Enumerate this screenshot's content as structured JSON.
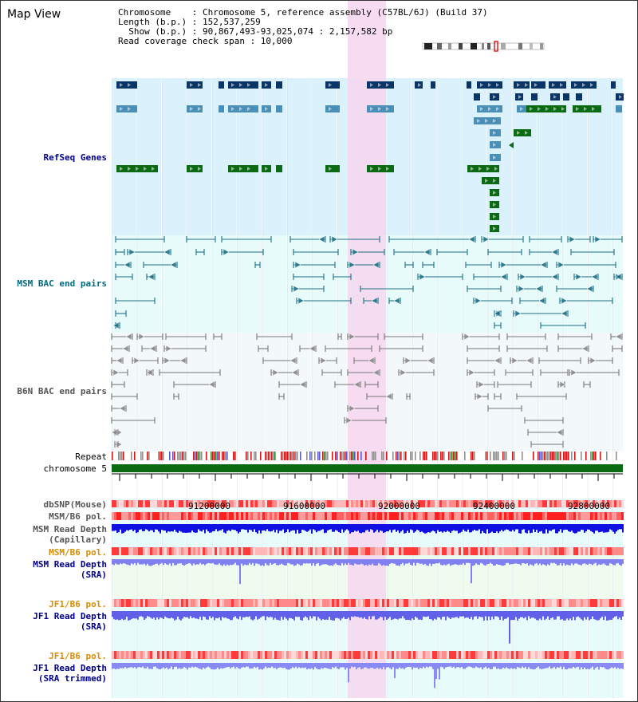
{
  "title": "Map View",
  "info": {
    "chromosome": "Chromosome    : Chromosome 5, reference assembly (C57BL/6J) (Build 37)",
    "length": "Length (b.p.) : 152,537,259",
    "show": "  Show (b.p.) : 90,867,493-93,025,074 : 2,157,582 bp",
    "read_coverage": "Read coverage check span : 10,000"
  },
  "tracks": {
    "refseq": "RefSeq Genes",
    "msm_bac": "MSM BAC end pairs",
    "b6n_bac": "B6N BAC end pairs",
    "repeat": "Repeat",
    "chromosome": "chromosome 5",
    "dbsnp": "dbSNP(Mouse)",
    "msm_b6_pol": "MSM/B6 pol.",
    "msm_read_depth_cap": "MSM Read Depth\n(Capillary)",
    "msm_b6_pol2": "MSM/B6 pol.",
    "msm_read_depth_sra": "MSM Read Depth\n(SRA)",
    "jf1_b6_pol": "JF1/B6 pol.",
    "jf1_read_depth_sra": "JF1 Read Depth\n(SRA)",
    "jf1_b6_pol2": "JF1/B6 pol.",
    "jf1_read_depth_trim": "JF1 Read Depth\n(SRA trimmed)"
  },
  "ruler_labels": [
    "91200000",
    "91600000",
    "92000000",
    "92400000",
    "92800000"
  ],
  "colors": {
    "refseq_bg": "#dbf1fb",
    "bac_bg": "#e8fbfb",
    "b6n_bg": "#f3f8fb",
    "highlight": "#f6d6ee",
    "gene_dark": "#0a3566",
    "gene_mid": "#4a8fb8",
    "gene_green": "#0b6b12",
    "msm_bac_line": "#1c6f84",
    "b6n_line": "#777777",
    "chrom_green": "#0b6b12",
    "label_blue": "#00008b",
    "label_teal": "#006a82",
    "label_orange": "#d98c00",
    "label_gray": "#555555"
  }
}
